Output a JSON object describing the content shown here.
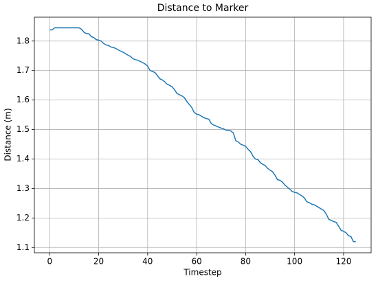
{
  "chart_data": {
    "type": "line",
    "title": "Distance to Marker",
    "x_label": "Timestep",
    "y_label": "Distance (m)",
    "x": [
      0,
      1,
      2,
      3,
      4,
      5,
      6,
      7,
      8,
      9,
      10,
      11,
      12,
      13,
      14,
      15,
      16,
      17,
      18,
      19,
      20,
      21,
      22,
      23,
      24,
      25,
      26,
      27,
      28,
      29,
      30,
      31,
      32,
      33,
      34,
      35,
      36,
      37,
      38,
      39,
      40,
      41,
      42,
      43,
      44,
      45,
      46,
      47,
      48,
      49,
      50,
      51,
      52,
      53,
      54,
      55,
      56,
      57,
      58,
      59,
      60,
      61,
      62,
      63,
      64,
      65,
      66,
      67,
      68,
      69,
      70,
      71,
      72,
      73,
      74,
      75,
      76,
      77,
      78,
      79,
      80,
      81,
      82,
      83,
      84,
      85,
      86,
      87,
      88,
      89,
      90,
      91,
      92,
      93,
      94,
      95,
      96,
      97,
      98,
      99,
      100,
      101,
      102,
      103,
      104,
      105,
      106,
      107,
      108,
      109,
      110,
      111,
      112,
      113,
      114,
      115,
      116,
      117,
      118,
      119,
      120,
      121,
      122,
      123,
      124,
      125
    ],
    "series": [
      {
        "color": "#1f77b4",
        "values": [
          1.838,
          1.838,
          1.845,
          1.845,
          1.845,
          1.845,
          1.845,
          1.845,
          1.845,
          1.845,
          1.845,
          1.845,
          1.845,
          1.84,
          1.83,
          1.825,
          1.825,
          1.815,
          1.812,
          1.805,
          1.803,
          1.8,
          1.792,
          1.787,
          1.785,
          1.78,
          1.778,
          1.775,
          1.77,
          1.766,
          1.762,
          1.757,
          1.752,
          1.748,
          1.74,
          1.737,
          1.735,
          1.731,
          1.727,
          1.722,
          1.715,
          1.7,
          1.697,
          1.693,
          1.683,
          1.672,
          1.668,
          1.662,
          1.653,
          1.65,
          1.645,
          1.635,
          1.622,
          1.618,
          1.614,
          1.608,
          1.595,
          1.585,
          1.575,
          1.558,
          1.552,
          1.55,
          1.545,
          1.54,
          1.537,
          1.535,
          1.52,
          1.515,
          1.512,
          1.508,
          1.505,
          1.502,
          1.498,
          1.497,
          1.495,
          1.488,
          1.462,
          1.458,
          1.45,
          1.447,
          1.443,
          1.433,
          1.425,
          1.41,
          1.4,
          1.398,
          1.388,
          1.382,
          1.378,
          1.368,
          1.362,
          1.357,
          1.345,
          1.33,
          1.328,
          1.322,
          1.312,
          1.305,
          1.298,
          1.29,
          1.287,
          1.285,
          1.28,
          1.275,
          1.268,
          1.255,
          1.252,
          1.247,
          1.245,
          1.24,
          1.235,
          1.23,
          1.225,
          1.212,
          1.195,
          1.192,
          1.188,
          1.185,
          1.172,
          1.158,
          1.155,
          1.15,
          1.14,
          1.137,
          1.12,
          1.12
        ]
      }
    ],
    "xlim": [
      -6.25,
      131.25
    ],
    "xticks": [
      0,
      20,
      40,
      60,
      80,
      100,
      120
    ],
    "ylim": [
      1.082,
      1.881
    ],
    "yticks": [
      1.1,
      1.2,
      1.3,
      1.4,
      1.5,
      1.6,
      1.7,
      1.8
    ],
    "grid": true
  }
}
